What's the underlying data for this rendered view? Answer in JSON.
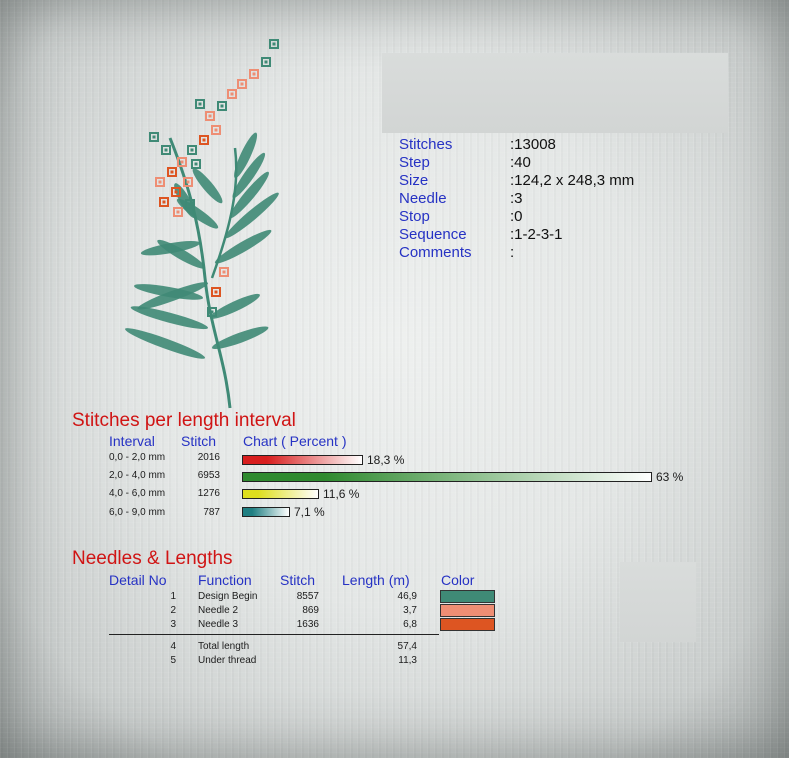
{
  "info": {
    "rows": [
      {
        "label": "Stitches",
        "value": ":13008"
      },
      {
        "label": "Step",
        "value": ":40"
      },
      {
        "label": "Size",
        "value": ":124,2 x 248,3 mm"
      },
      {
        "label": "Needle",
        "value": ":3"
      },
      {
        "label": "Stop",
        "value": ":0"
      },
      {
        "label": "Sequence",
        "value": ":1-2-3-1"
      },
      {
        "label": "Comments",
        "value": ":"
      }
    ]
  },
  "intervals": {
    "title": "Stitches per length interval",
    "headers": {
      "interval": "Interval",
      "stitch": "Stitch",
      "chart": "Chart ( Percent )"
    },
    "rows": [
      {
        "interval": "0,0 - 2,0 mm",
        "stitch": "2016",
        "percent": 18.3,
        "label": "18,3 %",
        "color": "#d81e1e"
      },
      {
        "interval": "2,0 - 4,0 mm",
        "stitch": "6953",
        "percent": 63,
        "label": "63 %",
        "color": "#2f8a2f"
      },
      {
        "interval": "4,0 - 6,0 mm",
        "stitch": "1276",
        "percent": 11.6,
        "label": "11,6 %",
        "color": "#dede1e"
      },
      {
        "interval": "6,0 - 9,0 mm",
        "stitch": "787",
        "percent": 7.1,
        "label": "7,1 %",
        "color": "#1f7f82"
      }
    ]
  },
  "needles": {
    "title": "Needles & Lengths",
    "headers": {
      "detail": "Detail No",
      "function": "Function",
      "stitch": "Stitch",
      "length": "Length (m)",
      "color": "Color"
    },
    "rows": [
      {
        "no": "1",
        "function": "Design Begin",
        "stitch": "8557",
        "length": "46,9",
        "color": "#3f8a76"
      },
      {
        "no": "2",
        "function": "Needle 2",
        "stitch": "869",
        "length": "3,7",
        "color": "#ee8e74"
      },
      {
        "no": "3",
        "function": "Needle 3",
        "stitch": "1636",
        "length": "6,8",
        "color": "#dd5522"
      }
    ],
    "totals": [
      {
        "no": "4",
        "function": "Total length",
        "length": "57,4"
      },
      {
        "no": "5",
        "function": "Under thread",
        "length": "11,3"
      }
    ]
  }
}
